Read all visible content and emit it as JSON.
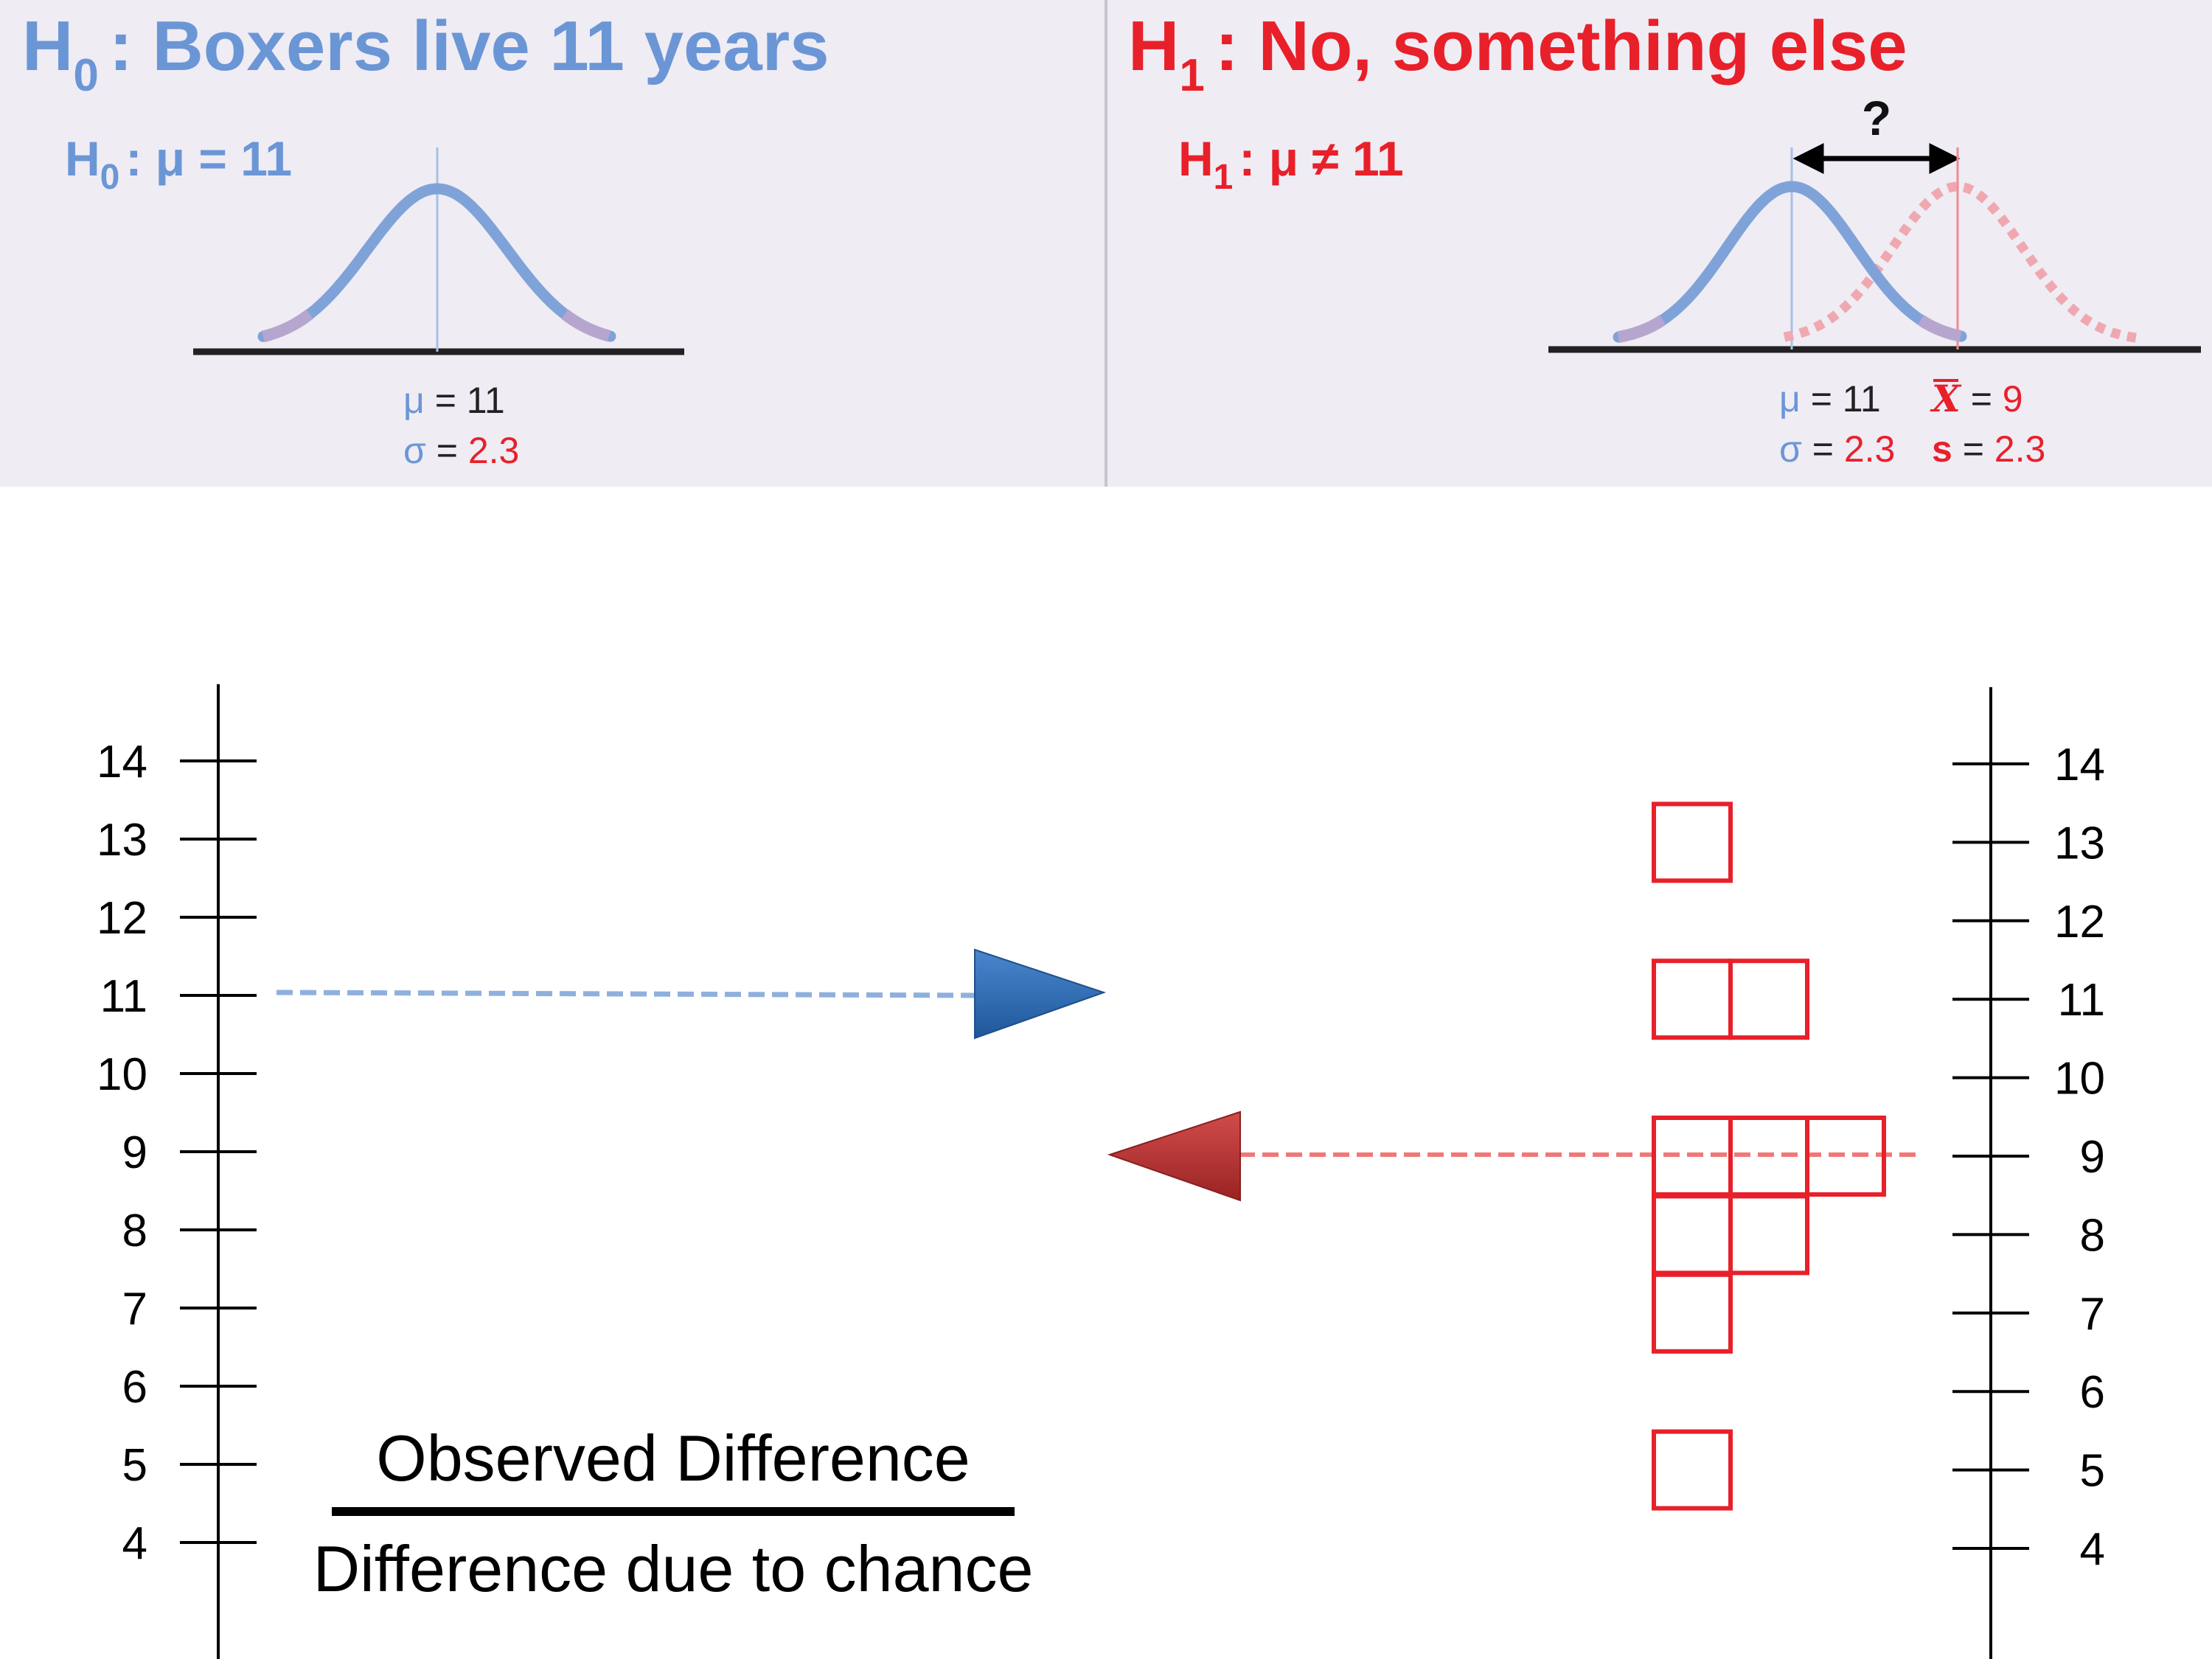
{
  "colors": {
    "h0": "#6b96d6",
    "h1": "#e8202a",
    "panel_bg": "#efecf4",
    "curve_blue": "#7fa3d8",
    "curve_pink": "#f0a8b0",
    "tail": "#b6a6cf",
    "arrow_blue": "#2f6bb5",
    "arrow_red": "#b83434",
    "dash_blue": "#8fb0dd",
    "dash_red": "#f07878",
    "box_red": "#e8202a"
  },
  "h0_panel": {
    "title_letter": "H",
    "title_sub": "0",
    "title_text": ": Boxers live 11 years",
    "label_letter": "H",
    "label_sub": "0",
    "label_text": ": μ = 11",
    "mu_symbol": "μ",
    "mu_eq": " = 11",
    "sigma_symbol": "σ",
    "sigma_eq": " = ",
    "sigma_val": "2.3",
    "curve_icon": "normal-curve-icon"
  },
  "h1_panel": {
    "title_letter": "H",
    "title_sub": "1",
    "title_text": ": No, something else",
    "label_letter": "H",
    "label_sub": "1",
    "label_text": ": μ ≠ 11",
    "question": "?",
    "mu_symbol": "μ",
    "mu_eq": " = 11",
    "xbar_symbol": "X",
    "xbar_eq": " = ",
    "xbar_val": "9",
    "sigma_symbol": "σ",
    "sigma_eq": " = ",
    "sigma_val": "2.3",
    "s_symbol": "s",
    "s_eq": " = ",
    "s_val": "2.3",
    "curve_icon": "overlapping-curves-icon"
  },
  "left_axis": {
    "ticks": [
      "14",
      "13",
      "12",
      "11",
      "10",
      "9",
      "8",
      "7",
      "6",
      "5",
      "4"
    ]
  },
  "right_axis": {
    "ticks": [
      "14",
      "13",
      "12",
      "11",
      "10",
      "9",
      "8",
      "7",
      "6",
      "5",
      "4"
    ]
  },
  "sample": {
    "values": [
      13,
      11,
      11,
      9,
      9,
      9,
      8,
      8,
      7,
      5
    ],
    "mean": 9,
    "reference": 11
  },
  "fraction": {
    "numerator": "Observed Difference",
    "denominator": "Difference due to chance"
  },
  "icons": {
    "blue_arrow": "right-triangle-arrow-icon",
    "red_arrow": "left-triangle-arrow-icon"
  }
}
